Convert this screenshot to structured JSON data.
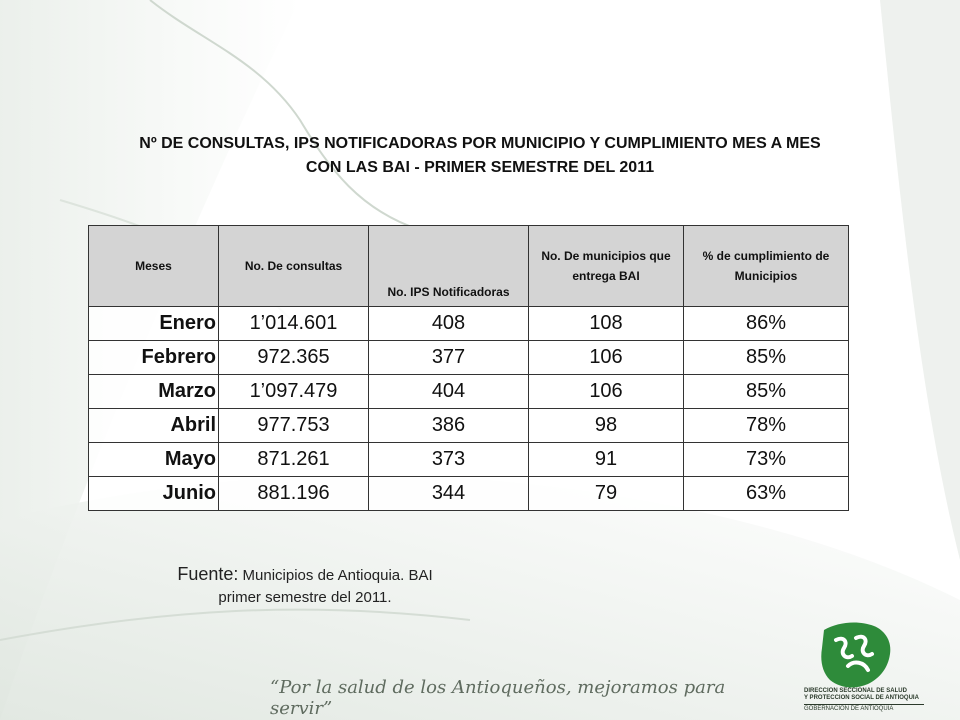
{
  "title": {
    "line1": "Nº  DE CONSULTAS, IPS NOTIFICADORAS POR MUNICIPIO Y CUMPLIMIENTO MES A MES",
    "line2": "CON LAS BAI   -     PRIMER  SEMESTRE DEL 2011"
  },
  "table": {
    "headers": [
      "Meses",
      "No. De consultas",
      "No. IPS Notificadoras",
      "No. De municipios que entrega BAI",
      "% de cumplimiento de Municipios"
    ],
    "rows": [
      [
        "Enero",
        "1’014.601",
        "408",
        "108",
        "86%"
      ],
      [
        "Febrero",
        "972.365",
        "377",
        "106",
        "85%"
      ],
      [
        "Marzo",
        "1’097.479",
        "404",
        "106",
        "85%"
      ],
      [
        "Abril",
        "977.753",
        "386",
        "98",
        "78%"
      ],
      [
        "Mayo",
        "871.261",
        "373",
        "91",
        "73%"
      ],
      [
        "Junio",
        "881.196",
        "344",
        "79",
        "63%"
      ]
    ]
  },
  "source": {
    "label": "Fuente:",
    "line1": " Municipios de Antioquia. BAI",
    "line2": "primer semestre del 2011."
  },
  "footer": {
    "slogan": "“Por la salud de los Antioqueños, mejoramos para servir”",
    "logo_line1": "DIRECCION SECCIONAL DE SALUD",
    "logo_line2": "Y PROTECCION SOCIAL DE ANTIOQUIA",
    "logo_line3": "GOBERNACION DE ANTIOQUIA"
  },
  "colors": {
    "header_bg": "#d4d4d4",
    "brand_green": "#2e8b3a",
    "slogan_gray": "#5f6b5f"
  }
}
